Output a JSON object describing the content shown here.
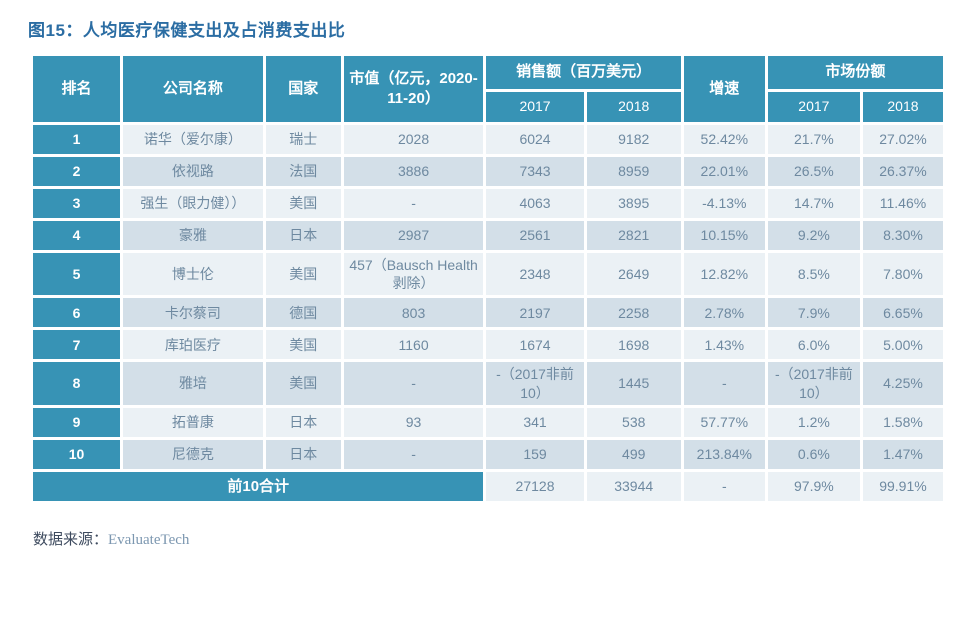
{
  "title": "图15：人均医疗保健支出及占消费支出比",
  "colors": {
    "header_teal": "#3793b5",
    "row_light": "#ebf1f5",
    "row_dark": "#d3dfe8",
    "title_blue": "#2b6da3",
    "cell_text": "#6e89a0"
  },
  "table": {
    "headers": {
      "rank": "排名",
      "company": "公司名称",
      "country": "国家",
      "market_cap": "市值（亿元，2020-11-20）",
      "sales_group": "销售额（百万美元）",
      "growth": "增速",
      "share_group": "市场份额",
      "sales_2017": "2017",
      "sales_2018": "2018",
      "share_2017": "2017",
      "share_2018": "2018"
    },
    "rows": [
      {
        "rank": "1",
        "company": "诺华（爱尔康）",
        "country": "瑞士",
        "market_cap": "2028",
        "sales_2017": "6024",
        "sales_2018": "9182",
        "growth": "52.42%",
        "share_2017": "21.7%",
        "share_2018": "27.02%"
      },
      {
        "rank": "2",
        "company": "依视路",
        "country": "法国",
        "market_cap": "3886",
        "sales_2017": "7343",
        "sales_2018": "8959",
        "growth": "22.01%",
        "share_2017": "26.5%",
        "share_2018": "26.37%"
      },
      {
        "rank": "3",
        "company": "强生（眼力健））",
        "country": "美国",
        "market_cap": "-",
        "sales_2017": "4063",
        "sales_2018": "3895",
        "growth": "-4.13%",
        "share_2017": "14.7%",
        "share_2018": "11.46%"
      },
      {
        "rank": "4",
        "company": "豪雅",
        "country": "日本",
        "market_cap": "2987",
        "sales_2017": "2561",
        "sales_2018": "2821",
        "growth": "10.15%",
        "share_2017": "9.2%",
        "share_2018": "8.30%"
      },
      {
        "rank": "5",
        "company": "博士伦",
        "country": "美国",
        "market_cap": "457（Bausch Health剥除）",
        "sales_2017": "2348",
        "sales_2018": "2649",
        "growth": "12.82%",
        "share_2017": "8.5%",
        "share_2018": "7.80%"
      },
      {
        "rank": "6",
        "company": "卡尔蔡司",
        "country": "德国",
        "market_cap": "803",
        "sales_2017": "2197",
        "sales_2018": "2258",
        "growth": "2.78%",
        "share_2017": "7.9%",
        "share_2018": "6.65%"
      },
      {
        "rank": "7",
        "company": "库珀医疗",
        "country": "美国",
        "market_cap": "1160",
        "sales_2017": "1674",
        "sales_2018": "1698",
        "growth": "1.43%",
        "share_2017": "6.0%",
        "share_2018": "5.00%"
      },
      {
        "rank": "8",
        "company": "雅培",
        "country": "美国",
        "market_cap": "-",
        "sales_2017": "-（2017非前10）",
        "sales_2018": "1445",
        "growth": "-",
        "share_2017": "-（2017非前10）",
        "share_2018": "4.25%"
      },
      {
        "rank": "9",
        "company": "拓普康",
        "country": "日本",
        "market_cap": "93",
        "sales_2017": "341",
        "sales_2018": "538",
        "growth": "57.77%",
        "share_2017": "1.2%",
        "share_2018": "1.58%"
      },
      {
        "rank": "10",
        "company": "尼德克",
        "country": "日本",
        "market_cap": "-",
        "sales_2017": "159",
        "sales_2018": "499",
        "growth": "213.84%",
        "share_2017": "0.6%",
        "share_2018": "1.47%"
      }
    ],
    "total": {
      "label": "前10合计",
      "sales_2017": "27128",
      "sales_2018": "33944",
      "growth": "-",
      "share_2017": "97.9%",
      "share_2018": "99.91%"
    }
  },
  "source": {
    "label": "数据来源：",
    "value": "EvaluateTech"
  }
}
